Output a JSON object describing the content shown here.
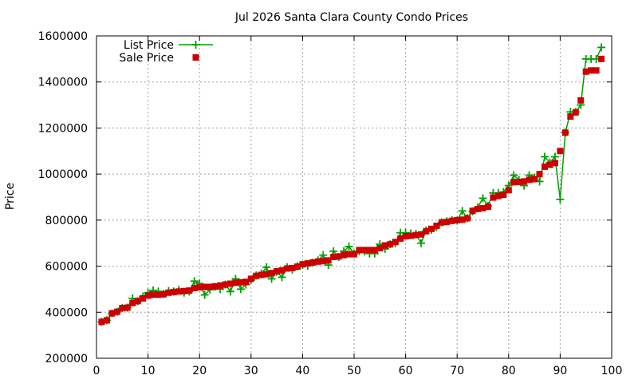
{
  "chart_data": {
    "type": "line",
    "title": "Jul 2026 Santa Clara County Condo Prices",
    "xlabel": "",
    "ylabel": "Price",
    "xlim": [
      0,
      100
    ],
    "ylim": [
      200000,
      1600000
    ],
    "x_ticks": [
      "0",
      "10",
      "20",
      "30",
      "40",
      "50",
      "60",
      "70",
      "80",
      "90",
      "100"
    ],
    "y_ticks": [
      "200000",
      "400000",
      "600000",
      "800000",
      "1000000",
      "1200000",
      "1400000",
      "1600000"
    ],
    "grid": true,
    "legend_position": "top-left",
    "series": [
      {
        "name": "List Price",
        "style": "line+plus",
        "color": "#00a000",
        "x": [
          1,
          2,
          3,
          4,
          5,
          6,
          7,
          8,
          9,
          10,
          11,
          12,
          13,
          14,
          15,
          16,
          17,
          18,
          19,
          20,
          21,
          22,
          23,
          24,
          25,
          26,
          27,
          28,
          29,
          30,
          31,
          32,
          33,
          34,
          35,
          36,
          37,
          38,
          39,
          40,
          41,
          42,
          43,
          44,
          45,
          46,
          47,
          48,
          49,
          50,
          51,
          52,
          53,
          54,
          55,
          56,
          57,
          58,
          59,
          60,
          61,
          62,
          63,
          64,
          65,
          66,
          67,
          68,
          69,
          70,
          71,
          72,
          73,
          74,
          75,
          76,
          77,
          78,
          79,
          80,
          81,
          82,
          83,
          84,
          85,
          86,
          87,
          88,
          89,
          90,
          91,
          92,
          93,
          94,
          95,
          96,
          97,
          98
        ],
        "y": [
          358000,
          365000,
          395000,
          402000,
          418000,
          420000,
          460000,
          448000,
          468000,
          485000,
          495000,
          490000,
          480000,
          492000,
          490000,
          498000,
          485000,
          490000,
          535000,
          525000,
          475000,
          498000,
          510000,
          500000,
          520000,
          490000,
          545000,
          500000,
          520000,
          540000,
          560000,
          568000,
          595000,
          545000,
          575000,
          552000,
          595000,
          585000,
          600000,
          605000,
          602000,
          615000,
          625000,
          648000,
          605000,
          665000,
          640000,
          665000,
          685000,
          655000,
          665000,
          665000,
          655000,
          655000,
          695000,
          675000,
          695000,
          700000,
          745000,
          745000,
          742000,
          740000,
          700000,
          755000,
          758000,
          770000,
          790000,
          795000,
          800000,
          798000,
          840000,
          808000,
          838000,
          855000,
          895000,
          862000,
          918000,
          918000,
          922000,
          950000,
          995000,
          975000,
          950000,
          995000,
          985000,
          968000,
          1075000,
          1050000,
          1075000,
          890000,
          1180000,
          1270000,
          1270000,
          1300000,
          1500000,
          1500000,
          1500000,
          1550000
        ]
      },
      {
        "name": "Sale Price",
        "style": "squares",
        "color": "#cc0000",
        "x": [
          1,
          2,
          3,
          4,
          5,
          6,
          7,
          8,
          9,
          10,
          11,
          12,
          13,
          14,
          15,
          16,
          17,
          18,
          19,
          20,
          21,
          22,
          23,
          24,
          25,
          26,
          27,
          28,
          29,
          30,
          31,
          32,
          33,
          34,
          35,
          36,
          37,
          38,
          39,
          40,
          41,
          42,
          43,
          44,
          45,
          46,
          47,
          48,
          49,
          50,
          51,
          52,
          53,
          54,
          55,
          56,
          57,
          58,
          59,
          60,
          61,
          62,
          63,
          64,
          65,
          66,
          67,
          68,
          69,
          70,
          71,
          72,
          73,
          74,
          75,
          76,
          77,
          78,
          79,
          80,
          81,
          82,
          83,
          84,
          85,
          86,
          87,
          88,
          89,
          90,
          91,
          92,
          93,
          94,
          95,
          96,
          97,
          98
        ],
        "y": [
          358000,
          365000,
          395000,
          402000,
          418000,
          420000,
          440000,
          448000,
          460000,
          472000,
          476000,
          476000,
          478000,
          485000,
          488000,
          490000,
          492000,
          494000,
          505000,
          508000,
          510000,
          510000,
          512000,
          516000,
          520000,
          524000,
          528000,
          530000,
          532000,
          545000,
          558000,
          562000,
          565000,
          570000,
          578000,
          582000,
          590000,
          592000,
          598000,
          608000,
          612000,
          616000,
          620000,
          622000,
          625000,
          640000,
          642000,
          648000,
          652000,
          652000,
          670000,
          670000,
          670000,
          670000,
          678000,
          690000,
          695000,
          705000,
          720000,
          730000,
          732000,
          735000,
          738000,
          752000,
          762000,
          775000,
          790000,
          792000,
          797000,
          800000,
          802000,
          808000,
          840000,
          848000,
          852000,
          858000,
          898000,
          905000,
          910000,
          930000,
          965000,
          966000,
          968000,
          975000,
          978000,
          1000000,
          1032000,
          1040000,
          1048000,
          1100000,
          1180000,
          1250000,
          1268000,
          1320000,
          1445000,
          1450000,
          1450000,
          1500000
        ]
      }
    ]
  }
}
